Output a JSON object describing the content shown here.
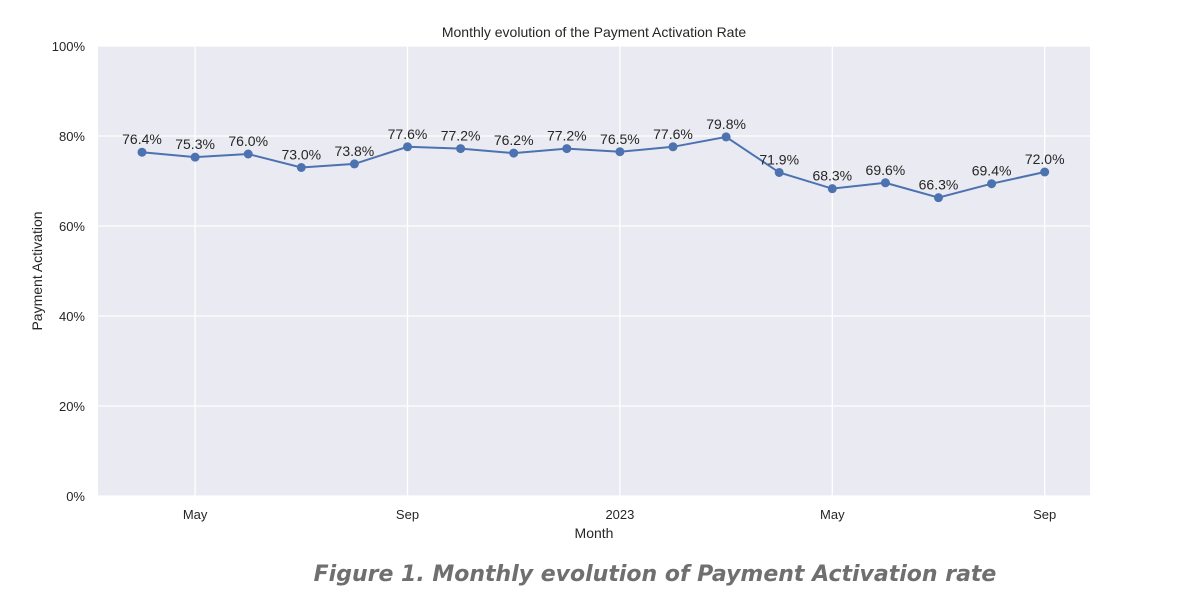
{
  "chart_data": {
    "type": "line",
    "title": "Monthly evolution of the Payment Activation Rate",
    "xlabel": "Month",
    "ylabel": "Payment Activation",
    "ylim": [
      0,
      100
    ],
    "yticks": [
      "0%",
      "20%",
      "40%",
      "60%",
      "80%",
      "100%"
    ],
    "ytick_values": [
      0,
      20,
      40,
      60,
      80,
      100
    ],
    "x": [
      "2022-04",
      "2022-05",
      "2022-06",
      "2022-07",
      "2022-08",
      "2022-09",
      "2022-10",
      "2022-11",
      "2022-12",
      "2023-01",
      "2023-02",
      "2023-03",
      "2023-04",
      "2023-05",
      "2023-06",
      "2023-07",
      "2023-08",
      "2023-09"
    ],
    "xticks": [
      {
        "label": "May",
        "x": "2022-05"
      },
      {
        "label": "Sep",
        "x": "2022-09"
      },
      {
        "label": "2023",
        "x": "2023-01"
      },
      {
        "label": "May",
        "x": "2023-05"
      },
      {
        "label": "Sep",
        "x": "2023-09"
      }
    ],
    "series": [
      {
        "values": [
          76.4,
          75.3,
          76.0,
          73.0,
          73.8,
          77.6,
          77.2,
          76.2,
          77.2,
          76.5,
          77.6,
          79.8,
          71.9,
          68.3,
          69.6,
          66.3,
          69.4,
          72.0
        ],
        "labels": [
          "76.4%",
          "75.3%",
          "76.0%",
          "73.0%",
          "73.8%",
          "77.6%",
          "77.2%",
          "76.2%",
          "77.2%",
          "76.5%",
          "77.6%",
          "79.8%",
          "71.9%",
          "68.3%",
          "69.6%",
          "66.3%",
          "69.4%",
          "72.0%"
        ],
        "color": "#4c72b0"
      }
    ],
    "grid": true,
    "background": "#eaeaf2"
  },
  "caption": "Figure 1. Monthly evolution of Payment Activation rate"
}
